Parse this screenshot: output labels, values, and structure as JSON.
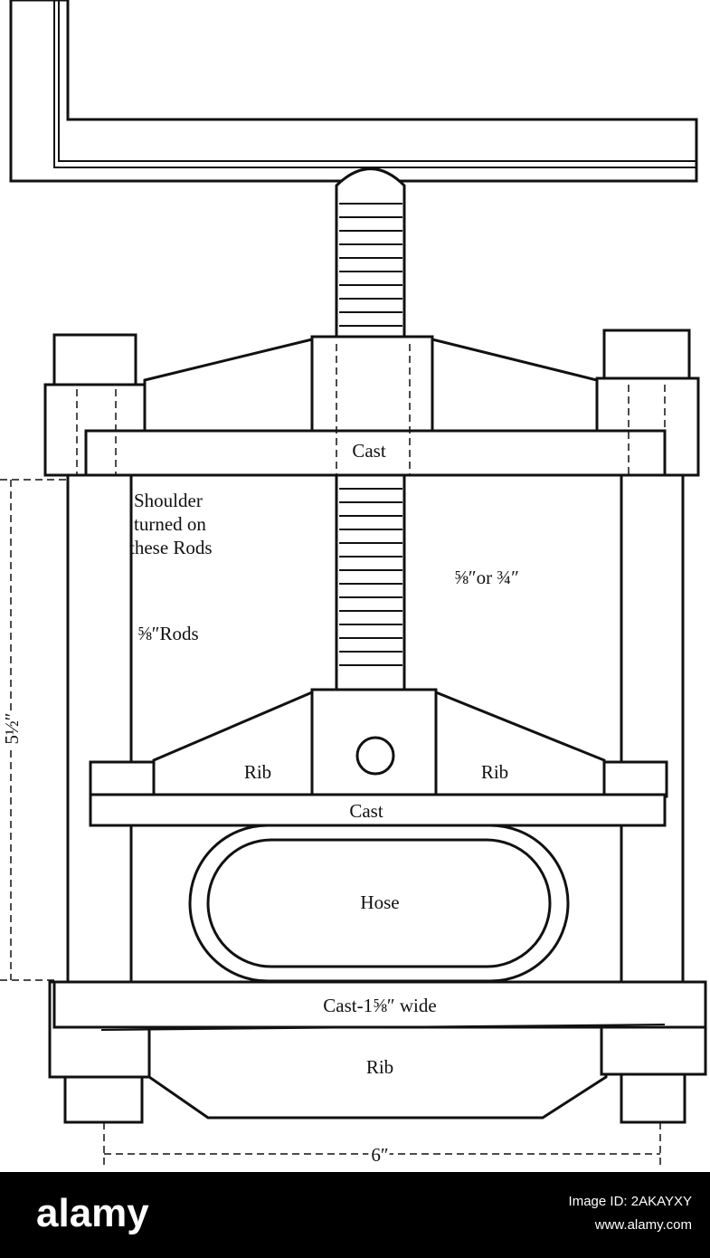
{
  "labels": {
    "top_cast": "Cast",
    "shoulder": [
      "Shoulder",
      "turned on",
      "these Rods"
    ],
    "screw_size": "⅝″or ¾″",
    "rods": "⅝″Rods",
    "rib_left": "Rib",
    "rib_right": "Rib",
    "middle_cast": "Cast",
    "hose": "Hose",
    "bottom_cast": "Cast-1⅝″ wide",
    "bottom_rib": "Rib",
    "width_dim": "6″",
    "height_dim": "5½″"
  },
  "footer": {
    "brand": "alamy",
    "image_id": "Image ID: 2AKAYXY",
    "site": "www.alamy.com"
  }
}
